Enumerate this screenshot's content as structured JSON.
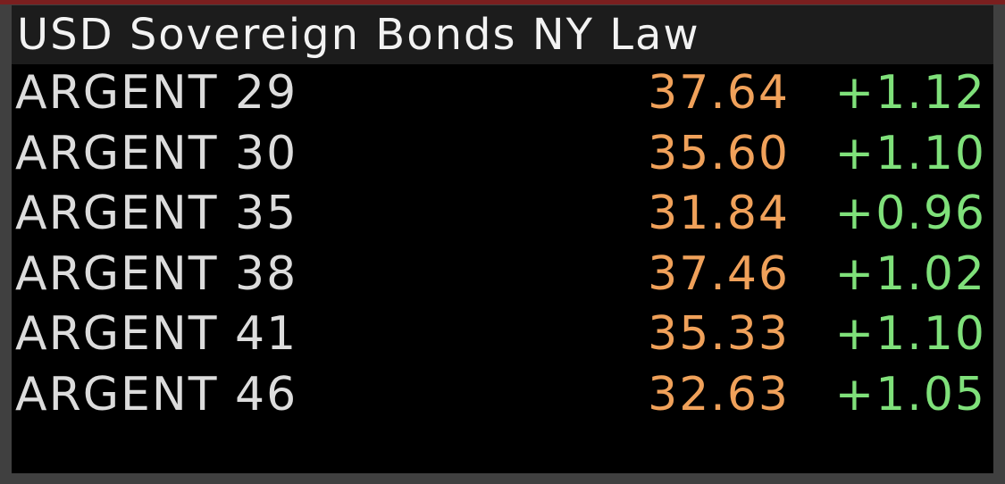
{
  "header": {
    "title": "USD Sovereign Bonds NY Law"
  },
  "table": {
    "rows": [
      [
        "ARGENT 29",
        "37.64",
        "+1.12"
      ],
      [
        "ARGENT 30",
        "35.60",
        "+1.10"
      ],
      [
        "ARGENT 35",
        "31.84",
        "+0.96"
      ],
      [
        "ARGENT 38",
        "37.46",
        "+1.02"
      ],
      [
        "ARGENT 41",
        "35.33",
        "+1.10"
      ],
      [
        "ARGENT 46",
        "32.63",
        "+1.05"
      ]
    ]
  }
}
